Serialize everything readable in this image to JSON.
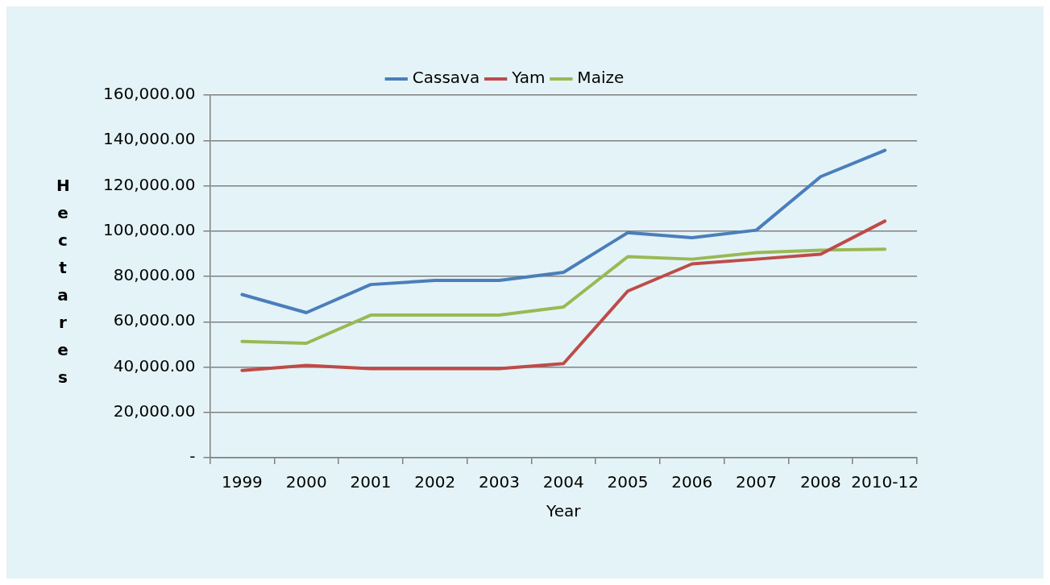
{
  "chart_data": {
    "type": "line",
    "xlabel": "Year",
    "ylabel": "Hectares",
    "categories": [
      "1999",
      "2000",
      "2001",
      "2002",
      "2003",
      "2004",
      "2005",
      "2006",
      "2007",
      "2008",
      "2010-12"
    ],
    "series": [
      {
        "name": "Cassava",
        "color": "#4a7ebb",
        "values": [
          72000,
          64000,
          76400,
          78200,
          78200,
          81800,
          99300,
          97100,
          100400,
          124000,
          135600
        ]
      },
      {
        "name": "Yam",
        "color": "#be4b48",
        "values": [
          38500,
          40700,
          39300,
          39300,
          39300,
          41500,
          73500,
          85500,
          87600,
          89800,
          104400
        ]
      },
      {
        "name": "Maize",
        "color": "#98b954",
        "values": [
          51300,
          50500,
          62900,
          62900,
          62900,
          66500,
          88700,
          87600,
          90500,
          91600,
          92000
        ]
      }
    ],
    "ylim": [
      0,
      160000
    ],
    "yticks": [
      {
        "value": 0,
        "label": "-"
      },
      {
        "value": 20000,
        "label": "20,000.00"
      },
      {
        "value": 40000,
        "label": "40,000.00"
      },
      {
        "value": 60000,
        "label": "60,000.00"
      },
      {
        "value": 80000,
        "label": "80,000.00"
      },
      {
        "value": 100000,
        "label": "100,000.00"
      },
      {
        "value": 120000,
        "label": "120,000.00"
      },
      {
        "value": 140000,
        "label": "140,000.00"
      },
      {
        "value": 160000,
        "label": "160,000.00"
      }
    ],
    "grid": "y",
    "legend": "top",
    "marker": "none",
    "line_style": "solid"
  }
}
